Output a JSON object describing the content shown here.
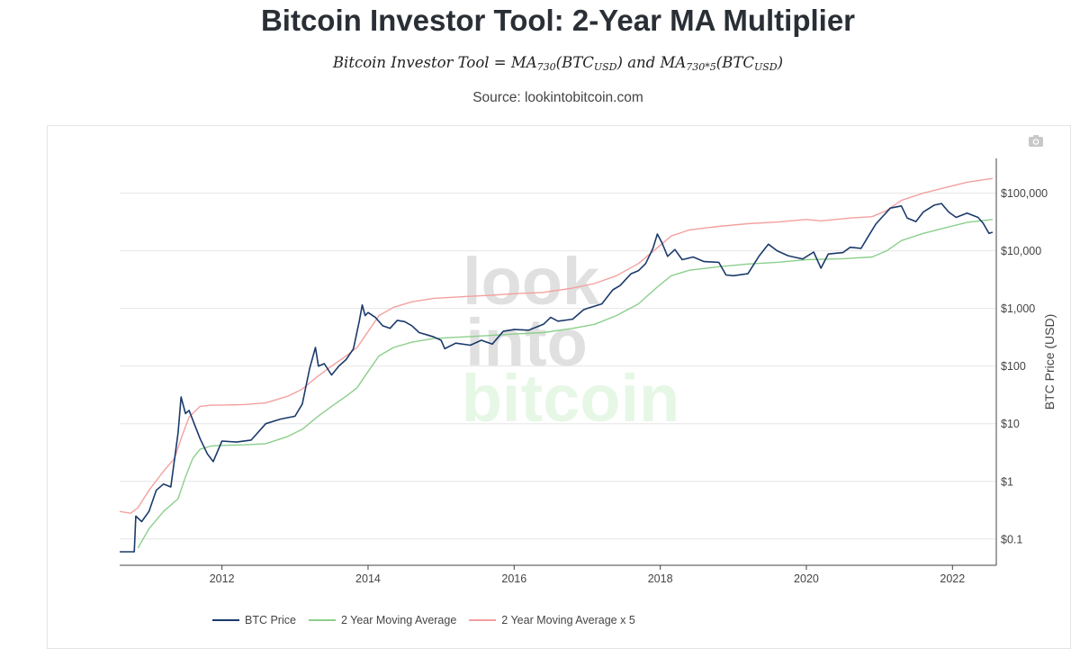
{
  "header": {
    "title": "Bitcoin Investor Tool: 2-Year MA Multiplier",
    "formula": {
      "prefix": "Bitcoin Investor Tool = MA",
      "sub1": "730",
      "mid1": "(BTC",
      "sub2": "USD",
      "mid2": ") and MA",
      "sub3": "730*5",
      "mid3": "(BTC",
      "sub4": "USD",
      "suffix": ")"
    },
    "source": "Source: lookintobitcoin.com"
  },
  "watermark": {
    "line1": "look",
    "line2": "into",
    "line3": "bitcoin"
  },
  "toolbar": {
    "camera_icon": "camera-icon"
  },
  "colors": {
    "btc_price": "#1b3a6b",
    "ma_2y": "#8ccf8c",
    "ma_2y_x5": "#f4a0a0",
    "grid": "#e6e6e6",
    "axis_text": "#444444",
    "watermark_gray": "#e0e0e0",
    "watermark_green": "#e6f7e6"
  },
  "chart_data": {
    "type": "line",
    "title": "Bitcoin Investor Tool: 2-Year MA Multiplier",
    "xlabel": "",
    "ylabel": "BTC Price (USD)",
    "yscale": "log",
    "ylim": [
      0.035,
      400000
    ],
    "xlim": [
      2010.6,
      2022.6
    ],
    "x_ticks": [
      2012,
      2014,
      2016,
      2018,
      2020,
      2022
    ],
    "x_tick_labels": [
      "2012",
      "2014",
      "2016",
      "2018",
      "2020",
      "2022"
    ],
    "y_ticks": [
      0.1,
      1,
      10,
      100,
      1000,
      10000,
      100000
    ],
    "y_tick_labels": [
      "$0.1",
      "$1",
      "$10",
      "$100",
      "$1,000",
      "$10,000",
      "$100,000"
    ],
    "legend_position": "bottom",
    "series": [
      {
        "name": "BTC Price",
        "points": [
          [
            2010.6,
            0.06
          ],
          [
            2010.8,
            0.06
          ],
          [
            2010.82,
            0.25
          ],
          [
            2010.9,
            0.2
          ],
          [
            2011.0,
            0.3
          ],
          [
            2011.1,
            0.7
          ],
          [
            2011.2,
            0.9
          ],
          [
            2011.3,
            0.8
          ],
          [
            2011.4,
            7
          ],
          [
            2011.44,
            29
          ],
          [
            2011.5,
            15
          ],
          [
            2011.55,
            17
          ],
          [
            2011.62,
            10
          ],
          [
            2011.7,
            5.5
          ],
          [
            2011.8,
            3
          ],
          [
            2011.88,
            2.2
          ],
          [
            2012.0,
            5
          ],
          [
            2012.2,
            4.8
          ],
          [
            2012.4,
            5.2
          ],
          [
            2012.6,
            10
          ],
          [
            2012.8,
            12
          ],
          [
            2013.0,
            13.5
          ],
          [
            2013.1,
            22
          ],
          [
            2013.2,
            90
          ],
          [
            2013.28,
            210
          ],
          [
            2013.32,
            100
          ],
          [
            2013.4,
            110
          ],
          [
            2013.5,
            70
          ],
          [
            2013.6,
            100
          ],
          [
            2013.7,
            130
          ],
          [
            2013.8,
            200
          ],
          [
            2013.88,
            600
          ],
          [
            2013.92,
            1150
          ],
          [
            2013.96,
            750
          ],
          [
            2014.0,
            850
          ],
          [
            2014.1,
            700
          ],
          [
            2014.2,
            500
          ],
          [
            2014.3,
            450
          ],
          [
            2014.4,
            620
          ],
          [
            2014.5,
            590
          ],
          [
            2014.6,
            500
          ],
          [
            2014.7,
            380
          ],
          [
            2014.8,
            350
          ],
          [
            2014.9,
            320
          ],
          [
            2015.0,
            280
          ],
          [
            2015.05,
            200
          ],
          [
            2015.2,
            250
          ],
          [
            2015.4,
            230
          ],
          [
            2015.55,
            280
          ],
          [
            2015.7,
            240
          ],
          [
            2015.85,
            400
          ],
          [
            2016.0,
            430
          ],
          [
            2016.2,
            420
          ],
          [
            2016.4,
            530
          ],
          [
            2016.5,
            700
          ],
          [
            2016.6,
            600
          ],
          [
            2016.8,
            650
          ],
          [
            2016.95,
            950
          ],
          [
            2017.0,
            1000
          ],
          [
            2017.2,
            1200
          ],
          [
            2017.35,
            2100
          ],
          [
            2017.45,
            2500
          ],
          [
            2017.6,
            4000
          ],
          [
            2017.7,
            4500
          ],
          [
            2017.8,
            6000
          ],
          [
            2017.9,
            11000
          ],
          [
            2017.96,
            19500
          ],
          [
            2018.02,
            14000
          ],
          [
            2018.1,
            8000
          ],
          [
            2018.2,
            10500
          ],
          [
            2018.3,
            7000
          ],
          [
            2018.45,
            7800
          ],
          [
            2018.6,
            6500
          ],
          [
            2018.8,
            6300
          ],
          [
            2018.9,
            3800
          ],
          [
            2019.0,
            3700
          ],
          [
            2019.2,
            4000
          ],
          [
            2019.35,
            8000
          ],
          [
            2019.48,
            13000
          ],
          [
            2019.6,
            10000
          ],
          [
            2019.75,
            8200
          ],
          [
            2019.95,
            7200
          ],
          [
            2020.1,
            9500
          ],
          [
            2020.2,
            5000
          ],
          [
            2020.3,
            8800
          ],
          [
            2020.5,
            9300
          ],
          [
            2020.6,
            11500
          ],
          [
            2020.75,
            11000
          ],
          [
            2020.85,
            18000
          ],
          [
            2020.95,
            29000
          ],
          [
            2021.05,
            40000
          ],
          [
            2021.15,
            55000
          ],
          [
            2021.3,
            60000
          ],
          [
            2021.38,
            37000
          ],
          [
            2021.5,
            32000
          ],
          [
            2021.6,
            47000
          ],
          [
            2021.75,
            62000
          ],
          [
            2021.85,
            66000
          ],
          [
            2021.95,
            47000
          ],
          [
            2022.05,
            38000
          ],
          [
            2022.2,
            45000
          ],
          [
            2022.35,
            38000
          ],
          [
            2022.42,
            30000
          ],
          [
            2022.5,
            20000
          ],
          [
            2022.55,
            21000
          ]
        ]
      },
      {
        "name": "2 Year Moving Average",
        "points": [
          [
            2010.85,
            0.07
          ],
          [
            2011.0,
            0.15
          ],
          [
            2011.2,
            0.3
          ],
          [
            2011.4,
            0.5
          ],
          [
            2011.5,
            1.2
          ],
          [
            2011.6,
            2.5
          ],
          [
            2011.7,
            3.6
          ],
          [
            2011.85,
            4.1
          ],
          [
            2012.0,
            4.2
          ],
          [
            2012.3,
            4.3
          ],
          [
            2012.6,
            4.5
          ],
          [
            2012.9,
            6
          ],
          [
            2013.1,
            8
          ],
          [
            2013.3,
            13
          ],
          [
            2013.5,
            20
          ],
          [
            2013.7,
            30
          ],
          [
            2013.85,
            42
          ],
          [
            2013.95,
            65
          ],
          [
            2014.15,
            150
          ],
          [
            2014.35,
            210
          ],
          [
            2014.6,
            260
          ],
          [
            2014.9,
            300
          ],
          [
            2015.3,
            320
          ],
          [
            2015.7,
            340
          ],
          [
            2016.0,
            360
          ],
          [
            2016.4,
            380
          ],
          [
            2016.8,
            450
          ],
          [
            2017.1,
            530
          ],
          [
            2017.4,
            750
          ],
          [
            2017.7,
            1200
          ],
          [
            2017.95,
            2300
          ],
          [
            2018.15,
            3700
          ],
          [
            2018.4,
            4600
          ],
          [
            2018.8,
            5300
          ],
          [
            2019.2,
            5900
          ],
          [
            2019.6,
            6300
          ],
          [
            2020.0,
            7000
          ],
          [
            2020.5,
            7300
          ],
          [
            2020.9,
            7800
          ],
          [
            2021.1,
            10000
          ],
          [
            2021.3,
            15000
          ],
          [
            2021.6,
            20000
          ],
          [
            2021.9,
            25000
          ],
          [
            2022.2,
            31000
          ],
          [
            2022.55,
            35000
          ]
        ]
      },
      {
        "name": "2 Year Moving Average x 5",
        "points": [
          [
            2010.6,
            0.3
          ],
          [
            2010.75,
            0.28
          ],
          [
            2010.85,
            0.35
          ],
          [
            2011.0,
            0.7
          ],
          [
            2011.2,
            1.5
          ],
          [
            2011.35,
            2.5
          ],
          [
            2011.45,
            6
          ],
          [
            2011.55,
            13
          ],
          [
            2011.7,
            20
          ],
          [
            2011.85,
            21
          ],
          [
            2012.0,
            21
          ],
          [
            2012.3,
            21.5
          ],
          [
            2012.6,
            23
          ],
          [
            2012.9,
            30
          ],
          [
            2013.1,
            40
          ],
          [
            2013.3,
            65
          ],
          [
            2013.5,
            100
          ],
          [
            2013.7,
            150
          ],
          [
            2013.85,
            210
          ],
          [
            2013.95,
            320
          ],
          [
            2014.15,
            750
          ],
          [
            2014.35,
            1050
          ],
          [
            2014.6,
            1300
          ],
          [
            2014.9,
            1500
          ],
          [
            2015.3,
            1600
          ],
          [
            2015.7,
            1700
          ],
          [
            2016.0,
            1800
          ],
          [
            2016.4,
            1900
          ],
          [
            2016.8,
            2250
          ],
          [
            2017.1,
            2700
          ],
          [
            2017.4,
            3700
          ],
          [
            2017.7,
            6000
          ],
          [
            2017.95,
            11000
          ],
          [
            2018.15,
            18000
          ],
          [
            2018.4,
            23000
          ],
          [
            2018.8,
            26500
          ],
          [
            2019.2,
            29500
          ],
          [
            2019.6,
            31500
          ],
          [
            2020.0,
            35000
          ],
          [
            2020.2,
            33000
          ],
          [
            2020.6,
            37000
          ],
          [
            2020.9,
            39000
          ],
          [
            2021.1,
            50000
          ],
          [
            2021.3,
            75000
          ],
          [
            2021.6,
            100000
          ],
          [
            2021.9,
            125000
          ],
          [
            2022.2,
            155000
          ],
          [
            2022.55,
            180000
          ]
        ]
      }
    ]
  }
}
